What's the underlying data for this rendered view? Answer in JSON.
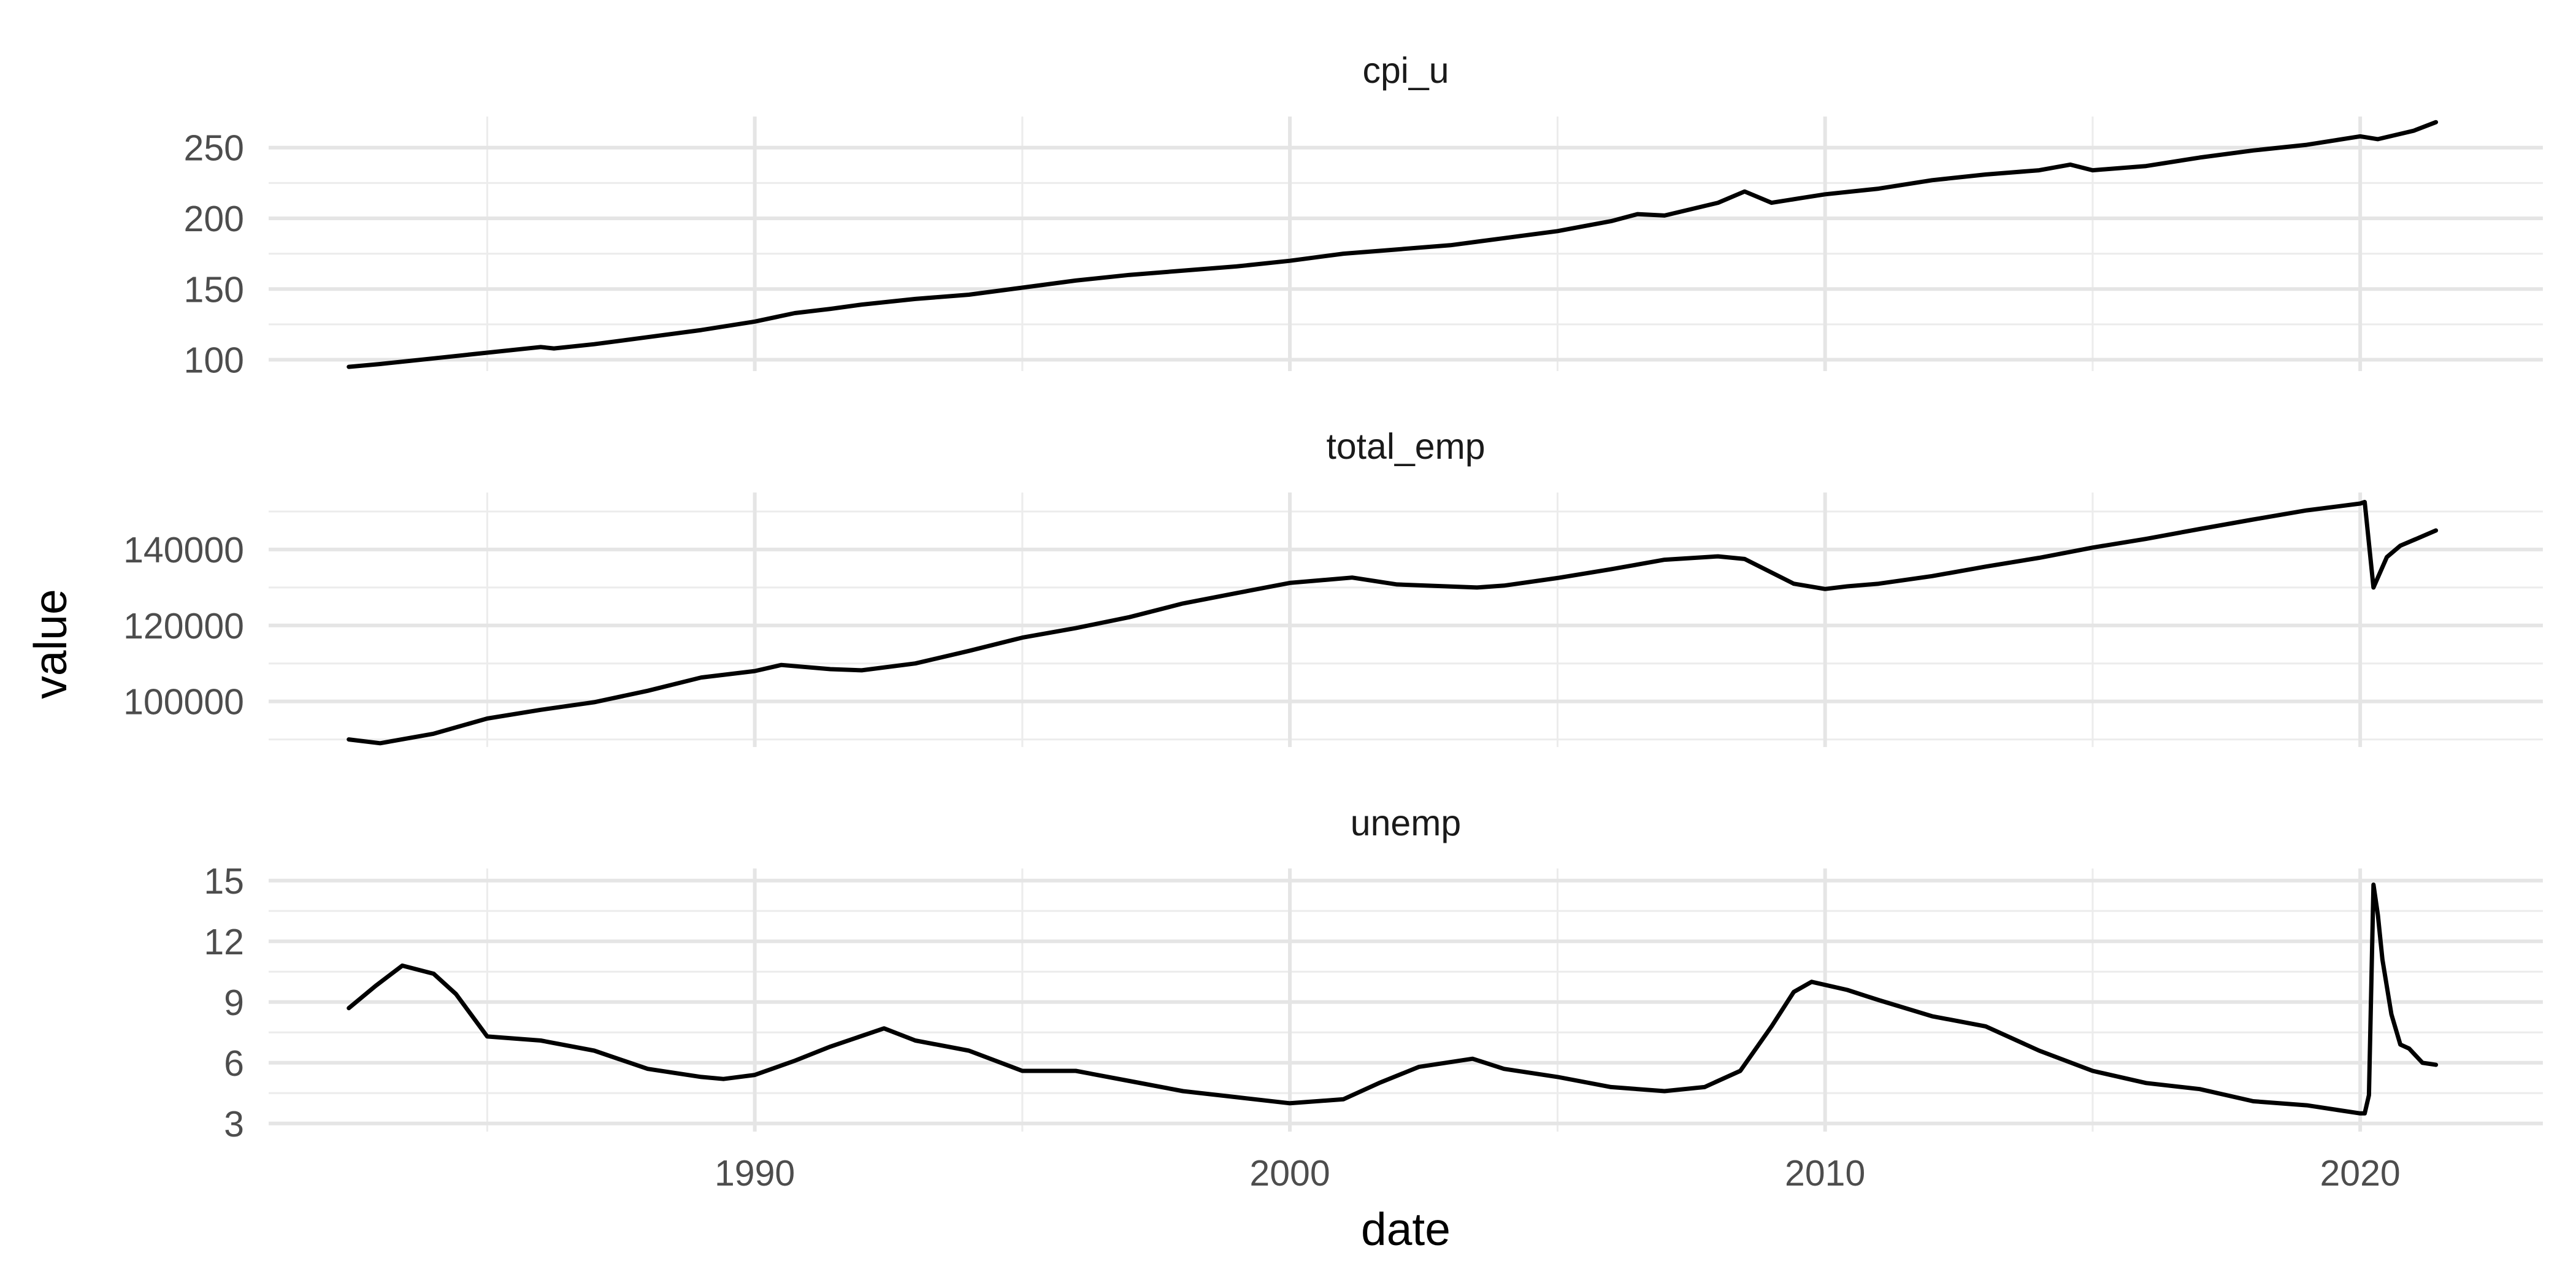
{
  "chart_data": {
    "type": "line",
    "facet": "vertical",
    "xlabel": "date",
    "ylabel": "value",
    "xlim": [
      "1980-12-01",
      "2023-06-01"
    ],
    "x_ticks": [
      "1990",
      "2000",
      "2010",
      "2020"
    ],
    "grid": true,
    "panels": [
      {
        "title": "cpi_u",
        "ylim": [
          92,
          272
        ],
        "y_ticks": [
          100,
          150,
          200,
          250
        ],
        "series": [
          {
            "x": [
              "1982-06",
              "1983-01",
              "1984-01",
              "1985-01",
              "1986-01",
              "1986-04",
              "1987-01",
              "1988-01",
              "1989-01",
              "1990-01",
              "1990-10",
              "1991-06",
              "1992-01",
              "1993-01",
              "1994-01",
              "1995-01",
              "1996-01",
              "1997-01",
              "1998-01",
              "1999-01",
              "2000-01",
              "2001-01",
              "2002-01",
              "2003-01",
              "2004-01",
              "2005-01",
              "2006-01",
              "2006-07",
              "2007-01",
              "2008-01",
              "2008-07",
              "2009-01",
              "2009-07",
              "2010-01",
              "2011-01",
              "2012-01",
              "2013-01",
              "2014-01",
              "2014-08",
              "2015-01",
              "2016-01",
              "2017-01",
              "2018-01",
              "2019-01",
              "2020-01",
              "2020-05",
              "2021-01",
              "2021-06"
            ],
            "y": [
              95,
              97,
              101,
              105,
              109,
              108,
              111,
              116,
              121,
              127,
              133,
              136,
              139,
              143,
              146,
              151,
              156,
              160,
              163,
              166,
              170,
              175,
              178,
              181,
              186,
              191,
              198,
              203,
              202,
              211,
              219,
              211,
              214,
              217,
              221,
              227,
              231,
              234,
              238,
              234,
              237,
              243,
              248,
              252,
              258,
              256,
              262,
              268
            ]
          }
        ]
      },
      {
        "title": "total_emp",
        "ylim": [
          88000,
          155000
        ],
        "y_ticks": [
          100000,
          120000,
          140000
        ],
        "series": [
          {
            "x": [
              "1982-06",
              "1983-01",
              "1984-01",
              "1985-01",
              "1986-01",
              "1987-01",
              "1988-01",
              "1989-01",
              "1990-01",
              "1990-07",
              "1991-06",
              "1992-01",
              "1993-01",
              "1994-01",
              "1995-01",
              "1996-01",
              "1997-01",
              "1998-01",
              "1999-01",
              "2000-01",
              "2001-03",
              "2002-01",
              "2003-07",
              "2004-01",
              "2005-01",
              "2006-01",
              "2007-01",
              "2008-01",
              "2008-07",
              "2009-06",
              "2010-01",
              "2010-06",
              "2011-01",
              "2012-01",
              "2013-01",
              "2014-01",
              "2015-01",
              "2016-01",
              "2017-01",
              "2018-01",
              "2019-01",
              "2020-01",
              "2020-02",
              "2020-04",
              "2020-07",
              "2020-10",
              "2021-01",
              "2021-06"
            ],
            "y": [
              90000,
              89000,
              91500,
              95500,
              97800,
              99800,
              102800,
              106300,
              108000,
              109600,
              108500,
              108200,
              110000,
              113300,
              116800,
              119300,
              122200,
              125800,
              128500,
              131200,
              132600,
              130800,
              130000,
              130500,
              132500,
              134800,
              137300,
              138200,
              137500,
              131000,
              129600,
              130300,
              131000,
              133000,
              135500,
              137800,
              140500,
              142800,
              145400,
              147900,
              150300,
              152100,
              152500,
              130000,
              138000,
              141000,
              142500,
              145000
            ]
          }
        ]
      },
      {
        "title": "unemp",
        "ylim": [
          2.6,
          15.6
        ],
        "y_ticks": [
          3,
          6,
          9,
          12,
          15
        ],
        "series": [
          {
            "x": [
              "1982-06",
              "1982-12",
              "1983-06",
              "1984-01",
              "1984-06",
              "1985-01",
              "1986-01",
              "1987-01",
              "1988-01",
              "1989-01",
              "1989-06",
              "1990-01",
              "1990-10",
              "1991-06",
              "1992-06",
              "1993-01",
              "1994-01",
              "1995-01",
              "1996-01",
              "1997-01",
              "1998-01",
              "1999-01",
              "2000-01",
              "2001-01",
              "2001-09",
              "2002-06",
              "2003-06",
              "2004-01",
              "2005-01",
              "2006-01",
              "2007-01",
              "2007-10",
              "2008-06",
              "2009-01",
              "2009-06",
              "2009-10",
              "2010-06",
              "2011-01",
              "2012-01",
              "2013-01",
              "2014-01",
              "2015-01",
              "2016-01",
              "2017-01",
              "2018-01",
              "2019-01",
              "2020-01",
              "2020-02",
              "2020-03",
              "2020-04",
              "2020-05",
              "2020-06",
              "2020-08",
              "2020-10",
              "2020-12",
              "2021-03",
              "2021-06"
            ],
            "y": [
              8.7,
              9.8,
              10.8,
              10.4,
              9.4,
              7.3,
              7.1,
              6.6,
              5.7,
              5.3,
              5.2,
              5.4,
              6.1,
              6.8,
              7.7,
              7.1,
              6.6,
              5.6,
              5.6,
              5.1,
              4.6,
              4.3,
              4.0,
              4.2,
              5.0,
              5.8,
              6.2,
              5.7,
              5.3,
              4.8,
              4.6,
              4.8,
              5.6,
              7.8,
              9.5,
              10.0,
              9.6,
              9.1,
              8.3,
              7.8,
              6.6,
              5.6,
              5.0,
              4.7,
              4.1,
              3.9,
              3.5,
              3.5,
              4.4,
              14.8,
              13.3,
              11.1,
              8.4,
              6.9,
              6.7,
              6.0,
              5.9
            ]
          }
        ]
      }
    ]
  }
}
